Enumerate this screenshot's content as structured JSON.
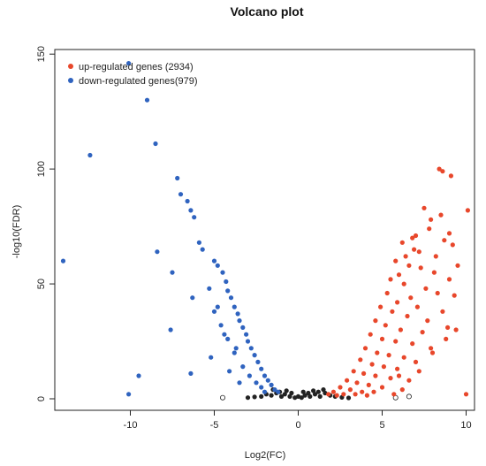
{
  "chart_data": {
    "type": "scatter",
    "title": "Volcano plot",
    "xlabel": "Log2(FC)",
    "ylabel": "-log10(FDR)",
    "xlim": [
      -14.5,
      10.5
    ],
    "ylim": [
      -5,
      152
    ],
    "xticks": [
      -10,
      -5,
      0,
      5,
      10
    ],
    "yticks": [
      0,
      50,
      100,
      150
    ],
    "grid": false,
    "legend_position": "top-left",
    "colors": {
      "up": "#e8472b",
      "down": "#2f63bf",
      "ns": "#222222"
    },
    "legend": [
      {
        "label": "up-regulated genes (2934)",
        "color": "#e8472b"
      },
      {
        "label": "down-regulated genes(979)",
        "color": "#2f63bf"
      }
    ],
    "series": [
      {
        "name": "up-regulated genes (2934)",
        "color": "#e8472b",
        "points": [
          [
            8.4,
            100
          ],
          [
            8.6,
            99
          ],
          [
            9.1,
            97
          ],
          [
            10.1,
            82
          ],
          [
            7.5,
            83
          ],
          [
            8.5,
            80
          ],
          [
            7.9,
            78
          ],
          [
            7.8,
            74
          ],
          [
            9.0,
            72
          ],
          [
            7.0,
            71
          ],
          [
            6.8,
            70
          ],
          [
            8.7,
            69
          ],
          [
            9.2,
            67
          ],
          [
            6.2,
            68
          ],
          [
            6.9,
            65
          ],
          [
            6.4,
            62
          ],
          [
            5.8,
            60
          ],
          [
            6.6,
            58
          ],
          [
            7.3,
            57
          ],
          [
            8.1,
            55
          ],
          [
            6.0,
            54
          ],
          [
            5.5,
            52
          ],
          [
            6.3,
            50
          ],
          [
            7.6,
            48
          ],
          [
            8.3,
            46
          ],
          [
            9.3,
            45
          ],
          [
            5.3,
            46
          ],
          [
            6.7,
            44
          ],
          [
            5.9,
            42
          ],
          [
            7.1,
            40
          ],
          [
            8.6,
            38
          ],
          [
            4.9,
            40
          ],
          [
            5.6,
            38
          ],
          [
            6.5,
            36
          ],
          [
            7.7,
            34
          ],
          [
            4.6,
            34
          ],
          [
            5.2,
            32
          ],
          [
            6.1,
            30
          ],
          [
            7.4,
            29
          ],
          [
            8.9,
            31
          ],
          [
            4.3,
            28
          ],
          [
            5.0,
            26
          ],
          [
            5.8,
            25
          ],
          [
            6.8,
            24
          ],
          [
            7.9,
            22
          ],
          [
            4.0,
            22
          ],
          [
            4.7,
            20
          ],
          [
            5.4,
            19
          ],
          [
            6.3,
            18
          ],
          [
            3.7,
            17
          ],
          [
            4.4,
            15
          ],
          [
            5.1,
            14
          ],
          [
            5.9,
            13
          ],
          [
            7.2,
            12
          ],
          [
            3.3,
            12
          ],
          [
            3.9,
            11
          ],
          [
            4.6,
            10
          ],
          [
            5.5,
            9
          ],
          [
            6.6,
            8
          ],
          [
            2.9,
            8
          ],
          [
            3.5,
            7
          ],
          [
            4.2,
            6
          ],
          [
            5.0,
            5
          ],
          [
            6.2,
            4
          ],
          [
            2.5,
            5
          ],
          [
            3.1,
            4
          ],
          [
            3.8,
            3
          ],
          [
            4.5,
            3
          ],
          [
            5.7,
            2
          ],
          [
            2.1,
            3
          ],
          [
            2.7,
            2
          ],
          [
            3.4,
            2
          ],
          [
            4.1,
            1.5
          ],
          [
            1.8,
            2
          ],
          [
            2.3,
            1.5
          ],
          [
            8.0,
            20
          ],
          [
            8.8,
            26
          ],
          [
            9.4,
            30
          ],
          [
            7.0,
            16
          ],
          [
            6.0,
            10
          ],
          [
            9.0,
            52
          ],
          [
            8.2,
            62
          ],
          [
            7.2,
            64
          ],
          [
            9.5,
            58
          ],
          [
            10.0,
            2
          ]
        ]
      },
      {
        "name": "down-regulated genes(979)",
        "color": "#2f63bf",
        "points": [
          [
            -10.1,
            146
          ],
          [
            -9.0,
            130
          ],
          [
            -8.5,
            111
          ],
          [
            -12.4,
            106
          ],
          [
            -7.2,
            96
          ],
          [
            -7.0,
            89
          ],
          [
            -6.6,
            86
          ],
          [
            -6.4,
            82
          ],
          [
            -6.2,
            79
          ],
          [
            -5.9,
            68
          ],
          [
            -5.7,
            65
          ],
          [
            -8.4,
            64
          ],
          [
            -14.0,
            60
          ],
          [
            -5.0,
            60
          ],
          [
            -4.8,
            58
          ],
          [
            -7.5,
            55
          ],
          [
            -4.5,
            55
          ],
          [
            -4.3,
            51
          ],
          [
            -4.2,
            47
          ],
          [
            -6.3,
            44
          ],
          [
            -4.0,
            44
          ],
          [
            -3.8,
            40
          ],
          [
            -3.6,
            37
          ],
          [
            -5.0,
            38
          ],
          [
            -3.5,
            34
          ],
          [
            -3.3,
            31
          ],
          [
            -4.6,
            32
          ],
          [
            -3.1,
            28
          ],
          [
            -7.6,
            30
          ],
          [
            -3.0,
            25
          ],
          [
            -4.2,
            26
          ],
          [
            -2.8,
            22
          ],
          [
            -2.6,
            19
          ],
          [
            -3.8,
            20
          ],
          [
            -2.4,
            16
          ],
          [
            -5.2,
            18
          ],
          [
            -2.2,
            13
          ],
          [
            -3.3,
            14
          ],
          [
            -4.1,
            12
          ],
          [
            -6.4,
            11
          ],
          [
            -2.0,
            10
          ],
          [
            -2.9,
            10
          ],
          [
            -1.8,
            8
          ],
          [
            -2.5,
            7
          ],
          [
            -3.5,
            7
          ],
          [
            -1.6,
            6
          ],
          [
            -2.2,
            5
          ],
          [
            -1.4,
            4
          ],
          [
            -2.0,
            3
          ],
          [
            -1.2,
            3
          ],
          [
            -9.5,
            10
          ],
          [
            -10.1,
            2
          ],
          [
            -4.8,
            40
          ],
          [
            -5.3,
            48
          ],
          [
            -3.7,
            22
          ],
          [
            -4.4,
            28
          ]
        ]
      },
      {
        "name": "",
        "color": "#222222",
        "points": [
          [
            -2.2,
            1
          ],
          [
            -1.9,
            2
          ],
          [
            -1.6,
            1.5
          ],
          [
            -1.3,
            2.5
          ],
          [
            -1.0,
            1
          ],
          [
            -0.8,
            2
          ],
          [
            -0.5,
            1
          ],
          [
            -0.2,
            0.5
          ],
          [
            0.0,
            1
          ],
          [
            0.2,
            0.5
          ],
          [
            0.4,
            1.5
          ],
          [
            0.7,
            1
          ],
          [
            1.0,
            2
          ],
          [
            1.3,
            1
          ],
          [
            1.6,
            2.5
          ],
          [
            1.9,
            1.5
          ],
          [
            2.2,
            1
          ],
          [
            -1.5,
            4
          ],
          [
            -1.1,
            3
          ],
          [
            -0.7,
            3.5
          ],
          [
            -0.4,
            2.5
          ],
          [
            0.3,
            3
          ],
          [
            0.6,
            2.5
          ],
          [
            0.9,
            3.5
          ],
          [
            1.2,
            3
          ],
          [
            1.5,
            4
          ],
          [
            -3.0,
            0.5
          ],
          [
            -2.6,
            0.8
          ],
          [
            2.6,
            0.6
          ],
          [
            3.0,
            0.4
          ],
          [
            -4.5,
            0.5
          ],
          [
            5.8,
            0.5
          ],
          [
            6.6,
            1
          ]
        ]
      }
    ]
  }
}
